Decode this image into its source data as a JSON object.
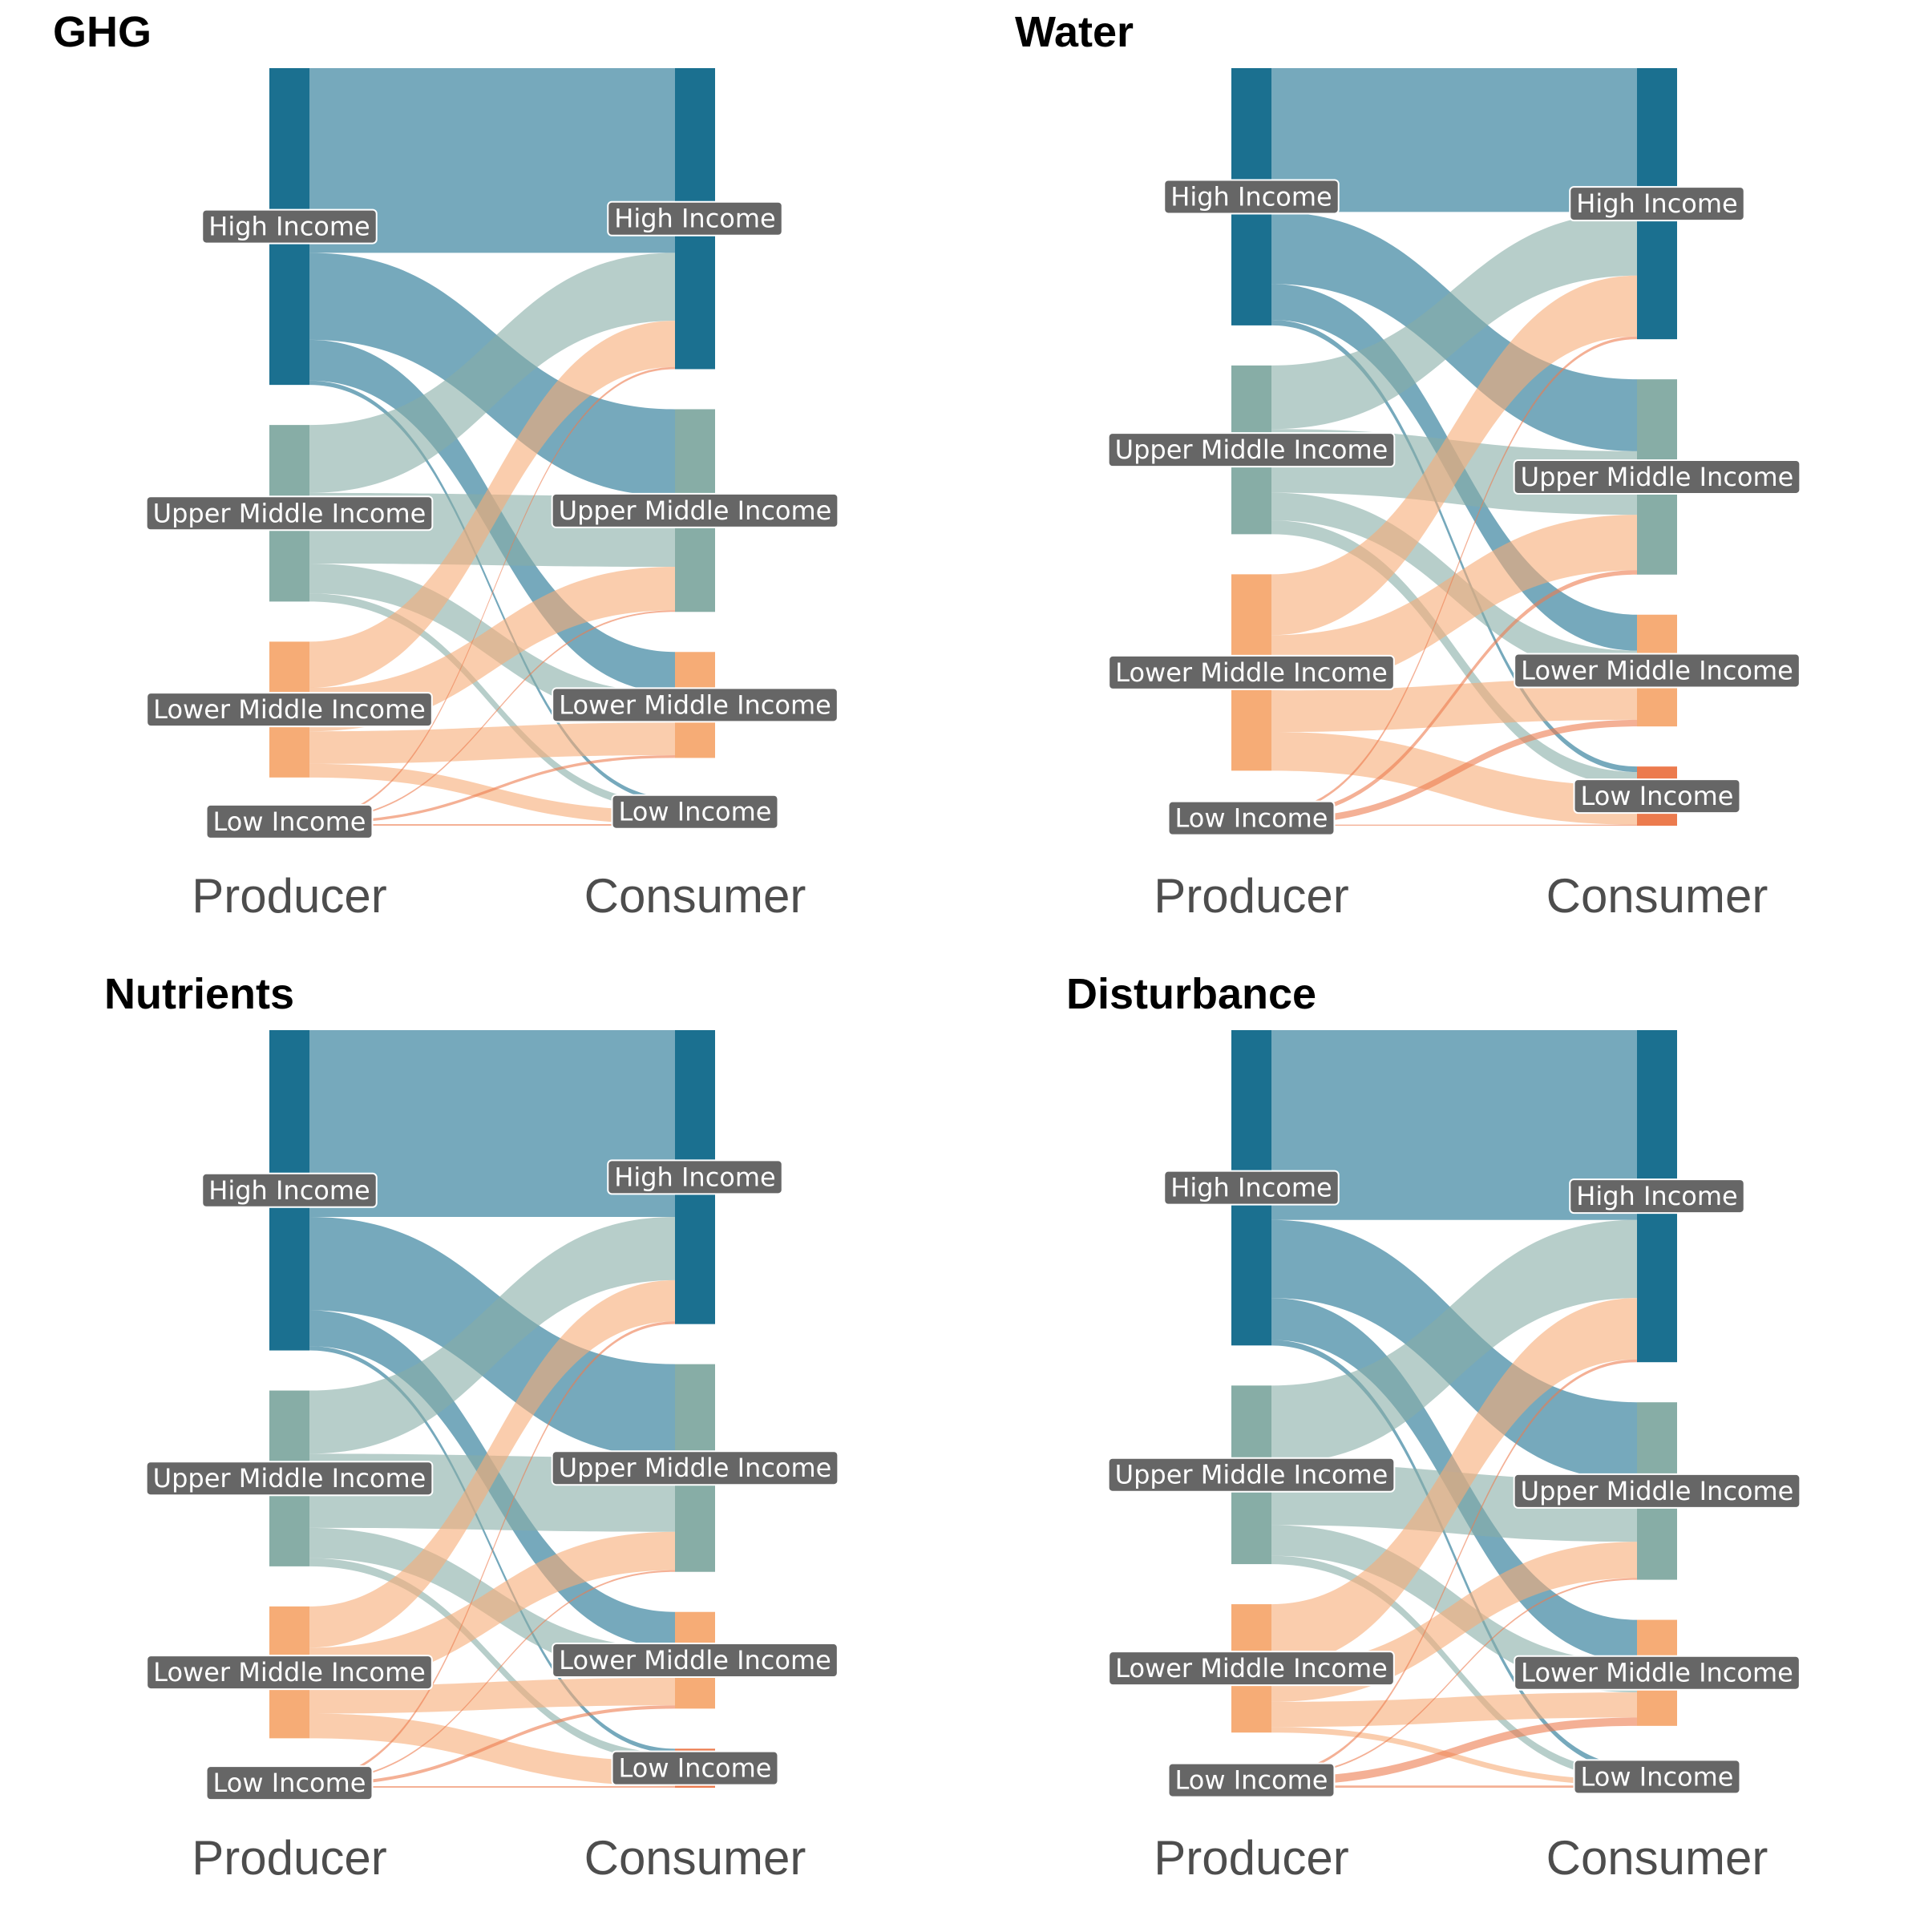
{
  "colors": {
    "High Income": "#1b7090",
    "Upper Middle Income": "#87ada6",
    "Lower Middle Income": "#f6ac76",
    "Low Income": "#ec7b4e",
    "label_box": "#666666",
    "label_text": "#ffffff",
    "axis_text": "#4d4d4d"
  },
  "chart_data": [
    {
      "type": "sankey",
      "title": "GHG",
      "axis_labels": [
        "Producer",
        "Consumer"
      ],
      "groups": [
        "High Income",
        "Upper Middle Income",
        "Lower Middle Income",
        "Low Income"
      ],
      "flows": [
        {
          "from": "High Income",
          "to": "High Income",
          "value": 34.0
        },
        {
          "from": "High Income",
          "to": "Upper Middle Income",
          "value": 16.0
        },
        {
          "from": "High Income",
          "to": "Lower Middle Income",
          "value": 7.5
        },
        {
          "from": "High Income",
          "to": "Low Income",
          "value": 0.8
        },
        {
          "from": "Upper Middle Income",
          "to": "High Income",
          "value": 12.5
        },
        {
          "from": "Upper Middle Income",
          "to": "Upper Middle Income",
          "value": 13.0
        },
        {
          "from": "Upper Middle Income",
          "to": "Lower Middle Income",
          "value": 5.5
        },
        {
          "from": "Upper Middle Income",
          "to": "Low Income",
          "value": 1.5
        },
        {
          "from": "Lower Middle Income",
          "to": "High Income",
          "value": 8.5
        },
        {
          "from": "Lower Middle Income",
          "to": "Upper Middle Income",
          "value": 8.0
        },
        {
          "from": "Lower Middle Income",
          "to": "Lower Middle Income",
          "value": 6.0
        },
        {
          "from": "Lower Middle Income",
          "to": "Low Income",
          "value": 2.5
        },
        {
          "from": "Low Income",
          "to": "High Income",
          "value": 0.4
        },
        {
          "from": "Low Income",
          "to": "Upper Middle Income",
          "value": 0.3
        },
        {
          "from": "Low Income",
          "to": "Lower Middle Income",
          "value": 0.5
        },
        {
          "from": "Low Income",
          "to": "Low Income",
          "value": 0.3
        }
      ]
    },
    {
      "type": "sankey",
      "title": "Water",
      "axis_labels": [
        "Producer",
        "Consumer"
      ],
      "groups": [
        "High Income",
        "Upper Middle Income",
        "Lower Middle Income",
        "Low Income"
      ],
      "flows": [
        {
          "from": "High Income",
          "to": "High Income",
          "value": 26.0
        },
        {
          "from": "High Income",
          "to": "Upper Middle Income",
          "value": 13.0
        },
        {
          "from": "High Income",
          "to": "Lower Middle Income",
          "value": 6.5
        },
        {
          "from": "High Income",
          "to": "Low Income",
          "value": 1.0
        },
        {
          "from": "Upper Middle Income",
          "to": "High Income",
          "value": 11.5
        },
        {
          "from": "Upper Middle Income",
          "to": "Upper Middle Income",
          "value": 11.5
        },
        {
          "from": "Upper Middle Income",
          "to": "Lower Middle Income",
          "value": 5.0
        },
        {
          "from": "Upper Middle Income",
          "to": "Low Income",
          "value": 2.5
        },
        {
          "from": "Lower Middle Income",
          "to": "High Income",
          "value": 11.0
        },
        {
          "from": "Lower Middle Income",
          "to": "Upper Middle Income",
          "value": 10.0
        },
        {
          "from": "Lower Middle Income",
          "to": "Lower Middle Income",
          "value": 7.5
        },
        {
          "from": "Lower Middle Income",
          "to": "Low Income",
          "value": 7.0
        },
        {
          "from": "Low Income",
          "to": "High Income",
          "value": 0.5
        },
        {
          "from": "Low Income",
          "to": "Upper Middle Income",
          "value": 0.8
        },
        {
          "from": "Low Income",
          "to": "Lower Middle Income",
          "value": 1.2
        },
        {
          "from": "Low Income",
          "to": "Low Income",
          "value": 0.2
        }
      ]
    },
    {
      "type": "sankey",
      "title": "Nutrients",
      "axis_labels": [
        "Producer",
        "Consumer"
      ],
      "groups": [
        "High Income",
        "Upper Middle Income",
        "Lower Middle Income",
        "Low Income"
      ],
      "flows": [
        {
          "from": "High Income",
          "to": "High Income",
          "value": 34.0
        },
        {
          "from": "High Income",
          "to": "Upper Middle Income",
          "value": 17.0
        },
        {
          "from": "High Income",
          "to": "Lower Middle Income",
          "value": 6.5
        },
        {
          "from": "High Income",
          "to": "Low Income",
          "value": 0.8
        },
        {
          "from": "Upper Middle Income",
          "to": "High Income",
          "value": 11.5
        },
        {
          "from": "Upper Middle Income",
          "to": "Upper Middle Income",
          "value": 13.5
        },
        {
          "from": "Upper Middle Income",
          "to": "Lower Middle Income",
          "value": 5.5
        },
        {
          "from": "Upper Middle Income",
          "to": "Low Income",
          "value": 1.5
        },
        {
          "from": "Lower Middle Income",
          "to": "High Income",
          "value": 7.5
        },
        {
          "from": "Lower Middle Income",
          "to": "Upper Middle Income",
          "value": 7.0
        },
        {
          "from": "Lower Middle Income",
          "to": "Lower Middle Income",
          "value": 5.0
        },
        {
          "from": "Lower Middle Income",
          "to": "Low Income",
          "value": 4.5
        },
        {
          "from": "Low Income",
          "to": "High Income",
          "value": 0.5
        },
        {
          "from": "Low Income",
          "to": "Upper Middle Income",
          "value": 0.3
        },
        {
          "from": "Low Income",
          "to": "Lower Middle Income",
          "value": 0.6
        },
        {
          "from": "Low Income",
          "to": "Low Income",
          "value": 0.3
        }
      ]
    },
    {
      "type": "sankey",
      "title": "Disturbance",
      "axis_labels": [
        "Producer",
        "Consumer"
      ],
      "groups": [
        "High Income",
        "Upper Middle Income",
        "Lower Middle Income",
        "Low Income"
      ],
      "flows": [
        {
          "from": "High Income",
          "to": "High Income",
          "value": 34.0
        },
        {
          "from": "High Income",
          "to": "Upper Middle Income",
          "value": 14.0
        },
        {
          "from": "High Income",
          "to": "Lower Middle Income",
          "value": 7.5
        },
        {
          "from": "High Income",
          "to": "Low Income",
          "value": 1.0
        },
        {
          "from": "Upper Middle Income",
          "to": "High Income",
          "value": 14.0
        },
        {
          "from": "Upper Middle Income",
          "to": "Upper Middle Income",
          "value": 11.0
        },
        {
          "from": "Upper Middle Income",
          "to": "Lower Middle Income",
          "value": 5.5
        },
        {
          "from": "Upper Middle Income",
          "to": "Low Income",
          "value": 1.5
        },
        {
          "from": "Lower Middle Income",
          "to": "High Income",
          "value": 11.0
        },
        {
          "from": "Lower Middle Income",
          "to": "Upper Middle Income",
          "value": 6.5
        },
        {
          "from": "Lower Middle Income",
          "to": "Lower Middle Income",
          "value": 4.5
        },
        {
          "from": "Lower Middle Income",
          "to": "Low Income",
          "value": 1.0
        },
        {
          "from": "Low Income",
          "to": "High Income",
          "value": 0.5
        },
        {
          "from": "Low Income",
          "to": "Upper Middle Income",
          "value": 0.3
        },
        {
          "from": "Low Income",
          "to": "Lower Middle Income",
          "value": 1.5
        },
        {
          "from": "Low Income",
          "to": "Low Income",
          "value": 0.4
        }
      ]
    }
  ]
}
